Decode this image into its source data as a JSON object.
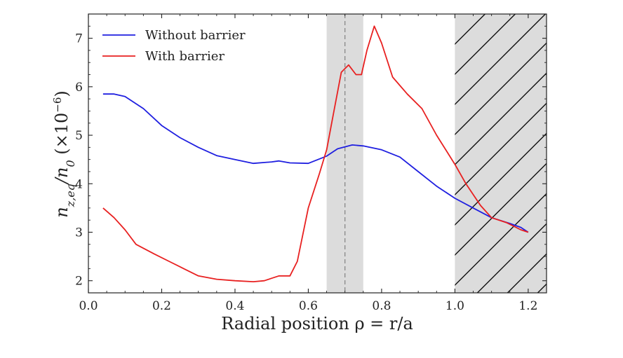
{
  "chart_data": {
    "type": "line",
    "xlabel": "Radial position ρ = r/a",
    "ylabel": "n",
    "ylabel_sub": "z,eq",
    "ylabel_mid": "/n",
    "ylabel_sub2": "0",
    "ylabel_unit": " (×10",
    "ylabel_exp": "−6",
    "ylabel_close": ")",
    "xlim": [
      0.0,
      1.25
    ],
    "ylim": [
      1.75,
      7.5
    ],
    "xticks": [
      0.0,
      0.2,
      0.4,
      0.6,
      0.8,
      1.0,
      1.2
    ],
    "xtick_labels": [
      "0.0",
      "0.2",
      "0.4",
      "0.6",
      "0.8",
      "1.0",
      "1.2"
    ],
    "yticks": [
      2,
      3,
      4,
      5,
      6,
      7
    ],
    "ytick_labels": [
      "2",
      "3",
      "4",
      "5",
      "6",
      "7"
    ],
    "shaded_band": {
      "x0": 0.65,
      "x1": 0.75,
      "color": "#dcdcdc"
    },
    "dashed_line_x": 0.7,
    "hatched_region": {
      "x0": 1.0,
      "x1": 1.25,
      "color": "#dcdcdc"
    },
    "legend_position": "top-left",
    "grid": false,
    "series": [
      {
        "name": "Without barrier",
        "color": "#1f1fe0",
        "x": [
          0.04,
          0.07,
          0.1,
          0.15,
          0.2,
          0.25,
          0.3,
          0.35,
          0.4,
          0.45,
          0.5,
          0.52,
          0.55,
          0.6,
          0.65,
          0.68,
          0.72,
          0.75,
          0.8,
          0.85,
          0.9,
          0.95,
          1.0,
          1.05,
          1.1,
          1.15,
          1.18,
          1.2
        ],
        "y": [
          5.85,
          5.85,
          5.8,
          5.55,
          5.2,
          4.95,
          4.75,
          4.58,
          4.5,
          4.42,
          4.45,
          4.47,
          4.43,
          4.42,
          4.57,
          4.72,
          4.8,
          4.78,
          4.7,
          4.55,
          4.25,
          3.95,
          3.7,
          3.5,
          3.3,
          3.18,
          3.1,
          3.0
        ]
      },
      {
        "name": "With barrier",
        "color": "#e82020",
        "x": [
          0.04,
          0.07,
          0.1,
          0.13,
          0.18,
          0.22,
          0.26,
          0.3,
          0.35,
          0.4,
          0.45,
          0.48,
          0.5,
          0.52,
          0.55,
          0.57,
          0.6,
          0.63,
          0.65,
          0.67,
          0.69,
          0.71,
          0.73,
          0.745,
          0.76,
          0.78,
          0.8,
          0.83,
          0.87,
          0.91,
          0.95,
          1.0,
          1.03,
          1.07,
          1.1,
          1.14,
          1.18,
          1.2
        ],
        "y": [
          3.5,
          3.3,
          3.05,
          2.75,
          2.55,
          2.4,
          2.25,
          2.1,
          2.03,
          2.0,
          1.98,
          2.0,
          2.05,
          2.1,
          2.1,
          2.4,
          3.5,
          4.2,
          4.7,
          5.5,
          6.3,
          6.45,
          6.25,
          6.25,
          6.75,
          7.25,
          6.9,
          6.2,
          5.85,
          5.55,
          5.0,
          4.4,
          4.0,
          3.55,
          3.3,
          3.2,
          3.05,
          3.0
        ]
      }
    ]
  }
}
